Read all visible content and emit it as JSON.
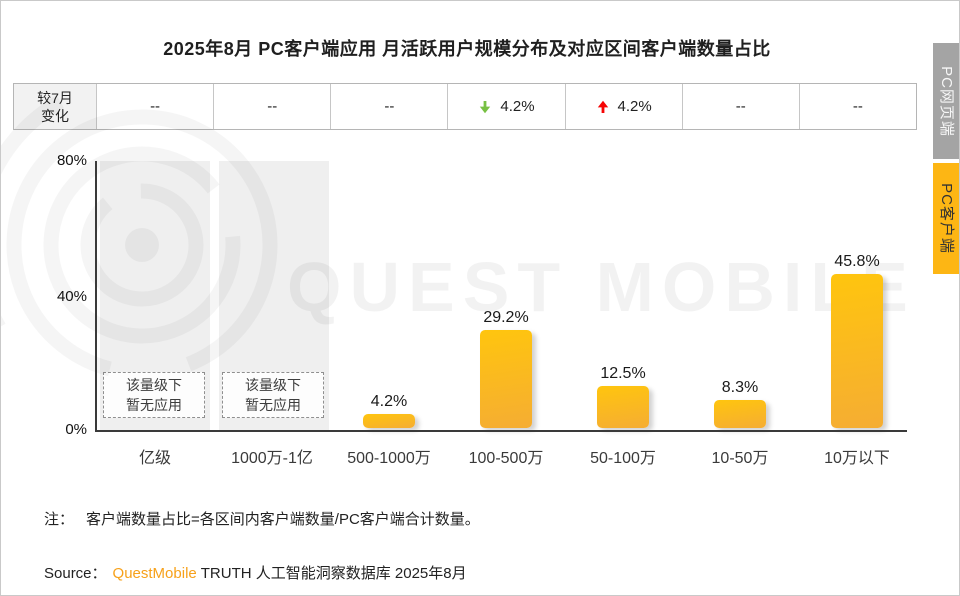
{
  "title": "2025年8月 PC客户端应用 月活跃用户规模分布及对应区间客户端数量占比",
  "side_tabs": {
    "web": {
      "label": "PC网页端"
    },
    "client": {
      "label": "PC客户端"
    }
  },
  "colors": {
    "down_arrow": "#77c043",
    "up_arrow": "#f60505",
    "bar_top": "#ffc50e",
    "bar_bottom": "#f5ad33",
    "brand_orange": "#f7a11a",
    "tab_gray": "#a4a4a4",
    "tab_orange": "#fdb614"
  },
  "change_table": {
    "header_line1": "较7月",
    "header_line2": "变化",
    "cells": [
      {
        "value": "--",
        "arrow": null
      },
      {
        "value": "--",
        "arrow": null
      },
      {
        "value": "--",
        "arrow": null
      },
      {
        "value": "4.2%",
        "arrow": "down"
      },
      {
        "value": "4.2%",
        "arrow": "up"
      },
      {
        "value": "--",
        "arrow": null
      },
      {
        "value": "--",
        "arrow": null
      }
    ]
  },
  "placeholder": {
    "line1": "该量级下",
    "line2": "暂无应用"
  },
  "watermark": {
    "text": "QUEST MOBILE"
  },
  "chart_data": {
    "type": "bar",
    "title": "2025年8月 PC客户端应用 月活跃用户规模分布及对应区间客户端数量占比",
    "categories": [
      "亿级",
      "1000万-1亿",
      "500-1000万",
      "100-500万",
      "50-100万",
      "10-50万",
      "10万以下"
    ],
    "values": [
      null,
      null,
      4.2,
      29.2,
      12.5,
      8.3,
      45.8
    ],
    "value_labels": [
      "",
      "",
      "4.2%",
      "29.2%",
      "12.5%",
      "8.3%",
      "45.8%"
    ],
    "mom_change_vs_july": [
      null,
      null,
      null,
      -4.2,
      4.2,
      null,
      null
    ],
    "no_data_note": "该量级下暂无应用",
    "xlabel": "",
    "ylabel": "",
    "yticks": [
      "0%",
      "40%",
      "80%"
    ],
    "ylim": [
      0,
      80
    ],
    "grid": false,
    "legend": false
  },
  "note": {
    "prefix": "注：",
    "body": "客户端数量占比=各区间内客户端数量/PC客户端合计数量。"
  },
  "source": {
    "prefix": "Source：",
    "brand": "QuestMobile",
    "suffix": "TRUTH 人工智能洞察数据库 2025年8月"
  }
}
